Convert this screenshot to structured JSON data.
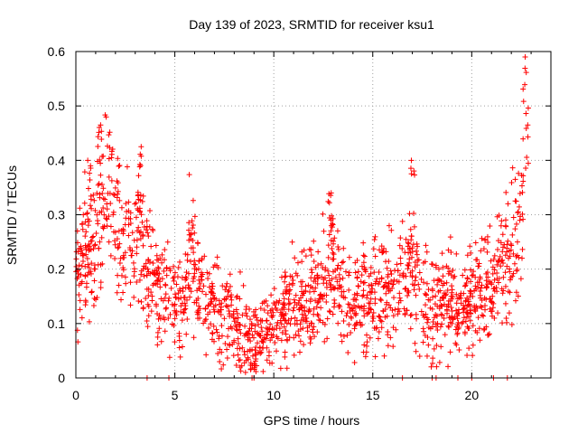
{
  "chart_data": {
    "type": "scatter",
    "title": "Day 139 of 2023, SRMTID for receiver ksu1",
    "xlabel": "GPS time / hours",
    "ylabel": "SRMTID / TECUs",
    "xlim": [
      0,
      24
    ],
    "ylim": [
      0,
      0.6
    ],
    "xticks": [
      0,
      5,
      10,
      15,
      20
    ],
    "yticks": [
      0,
      0.1,
      0.2,
      0.3,
      0.4,
      0.5,
      0.6
    ],
    "xtick_labels": [
      "0",
      "5",
      "10",
      "15",
      "20"
    ],
    "ytick_labels": [
      "0",
      "0.1",
      "0.2",
      "0.3",
      "0.4",
      "0.5",
      "0.6"
    ],
    "grid": true,
    "marker": "+",
    "series": [
      {
        "name": "SRMTID",
        "color": "#ff0000",
        "trend": {
          "x": [
            0.0,
            0.5,
            1.0,
            1.3,
            1.6,
            2.0,
            2.5,
            3.0,
            3.3,
            3.6,
            4.0,
            4.5,
            5.0,
            5.5,
            5.8,
            6.2,
            7.0,
            7.5,
            8.0,
            8.5,
            9.0,
            9.5,
            10.0,
            10.5,
            11.0,
            11.5,
            12.0,
            12.5,
            13.0,
            13.5,
            14.0,
            14.5,
            15.0,
            15.5,
            16.0,
            16.5,
            17.0,
            17.5,
            18.0,
            18.5,
            19.0,
            19.5,
            20.0,
            20.5,
            21.0,
            21.5,
            22.0,
            22.3,
            22.6
          ],
          "y": [
            0.19,
            0.21,
            0.25,
            0.3,
            0.33,
            0.3,
            0.25,
            0.22,
            0.26,
            0.2,
            0.17,
            0.16,
            0.15,
            0.15,
            0.25,
            0.16,
            0.12,
            0.11,
            0.1,
            0.08,
            0.06,
            0.08,
            0.1,
            0.12,
            0.13,
            0.14,
            0.14,
            0.18,
            0.2,
            0.15,
            0.13,
            0.14,
            0.15,
            0.16,
            0.17,
            0.18,
            0.2,
            0.15,
            0.12,
            0.12,
            0.13,
            0.12,
            0.15,
            0.16,
            0.18,
            0.2,
            0.23,
            0.27,
            0.33
          ]
        },
        "peaks": [
          {
            "x": 1.25,
            "y": 0.465
          },
          {
            "x": 3.3,
            "y": 0.425
          },
          {
            "x": 16.95,
            "y": 0.4
          },
          {
            "x": 22.7,
            "y": 0.59
          },
          {
            "x": 0.6,
            "y": 0.4
          },
          {
            "x": 12.9,
            "y": 0.34
          }
        ],
        "zeros_x": [
          3.6,
          4.7,
          8.9,
          9.0,
          16.5,
          18.0,
          18.2,
          19.3,
          20.0,
          21.1,
          21.8
        ]
      }
    ]
  }
}
